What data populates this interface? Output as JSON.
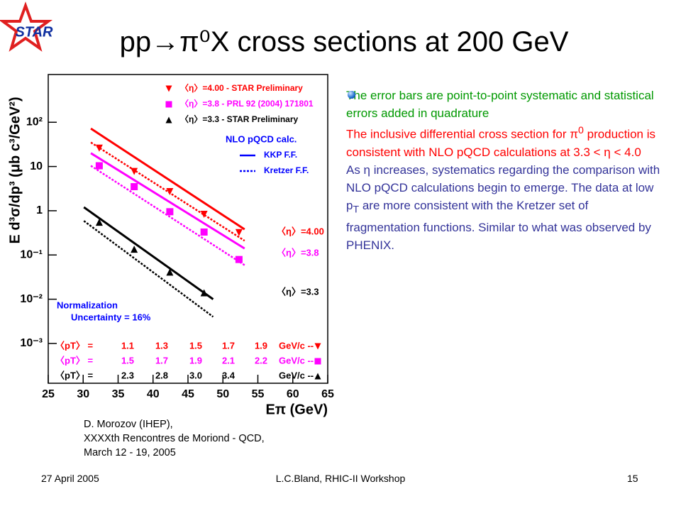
{
  "logo": "STAR",
  "title": "pp→π⁰X cross sections at 200 GeV",
  "bullets": [
    {
      "color": "#009900",
      "segments": [
        {
          "text": "The error bars are point-to-point systematic and statistical errors added in quadrature"
        }
      ]
    },
    {
      "color": "#ff0000",
      "segments": [
        {
          "text": "The  inclusive differential cross section for π"
        },
        {
          "sup": "0"
        },
        {
          "text": "  production is consistent with NLO pQCD calculations at 3.3 < η < 4.0"
        }
      ]
    },
    {
      "color": "#333399",
      "segments": [
        {
          "text": "As η increases, systematics regarding the comparison with NLO pQCD calculations begin to emerge. The data at low p"
        },
        {
          "sub": "T"
        },
        {
          "text": " are more consistent with the Kretzer set of fragmentation functions. Similar to what was observed by PHENIX."
        }
      ]
    }
  ],
  "citation": [
    "D. Morozov (IHEP),",
    "XXXXth Rencontres de Moriond - QCD,",
    "March 12 - 19, 2005"
  ],
  "footer": {
    "date": "27 April 2005",
    "center": "L.C.Bland, RHIC-II Workshop",
    "page": "15"
  },
  "chart_data": {
    "type": "scatter",
    "x_label": "Eπ (GeV)",
    "y_label": "E d³σ/dp³ (μb c³/GeV²)",
    "log_y": true,
    "xlim": [
      25,
      65
    ],
    "xticks": [
      25,
      30,
      35,
      40,
      45,
      50,
      55,
      60,
      65
    ],
    "ylim": [
      0.000126,
      1200
    ],
    "yticks": [
      {
        "value": 100,
        "label": "10²"
      },
      10,
      1,
      {
        "value": 0.1,
        "label": "10⁻¹"
      },
      {
        "value": 0.01,
        "label": "10⁻²"
      },
      {
        "value": 0.001,
        "label": "10⁻³"
      }
    ],
    "series": [
      {
        "name": "〈η〉=4.00 - STAR Preliminary",
        "color": "#ff0000",
        "marker": "triangle-down",
        "label": "〈η〉=4.00",
        "x": [
          32.3,
          37.3,
          42.4,
          47.3,
          52.3
        ],
        "values": [
          26,
          7.7,
          2.7,
          0.83,
          0.32
        ]
      },
      {
        "name": "〈η〉=3.8 - PRL 92 (2004) 171801",
        "color": "#ff00ff",
        "marker": "square",
        "label": "〈η〉=3.8",
        "x": [
          32.3,
          37.3,
          42.4,
          47.3,
          52.3
        ],
        "values": [
          10.4,
          3.5,
          0.95,
          0.33,
          0.079
        ]
      },
      {
        "name": "〈η〉=3.3 - STAR Preliminary",
        "color": "#000000",
        "marker": "triangle-up",
        "label": "〈η〉=3.3",
        "x": [
          32.3,
          37.3,
          42.4,
          47.3
        ],
        "values": [
          0.55,
          0.135,
          0.041,
          0.014
        ]
      }
    ],
    "curve_title": "NLO pQCD calc.",
    "curve_legend": [
      {
        "name": "KKP F.F.",
        "style": "solid"
      },
      {
        "name": "Kretzer F.F.",
        "style": "dashed"
      }
    ],
    "curves": [
      {
        "color": "#ff0000",
        "style": "solid",
        "x": [
          31.1,
          53.1
        ],
        "values": [
          72,
          0.38
        ]
      },
      {
        "color": "#ff0000",
        "style": "dashed",
        "x": [
          31.1,
          53.1
        ],
        "values": [
          35,
          0.21
        ]
      },
      {
        "color": "#ff00ff",
        "style": "solid",
        "x": [
          31.1,
          53.1
        ],
        "values": [
          20,
          0.14
        ]
      },
      {
        "color": "#ff00ff",
        "style": "dashed",
        "x": [
          31.1,
          53.1
        ],
        "values": [
          10.4,
          0.059
        ]
      },
      {
        "color": "#000000",
        "style": "solid",
        "x": [
          30.1,
          48.6
        ],
        "values": [
          1.2,
          0.01
        ]
      },
      {
        "color": "#000000",
        "style": "dashed",
        "x": [
          30.1,
          48.6
        ],
        "values": [
          0.59,
          0.004
        ]
      }
    ],
    "normalization": [
      "Normalization",
      "Uncertainty = 16%"
    ],
    "pt_rows": [
      {
        "label": "〈pT〉 =",
        "color": "#ff0000",
        "marker": "triangle-down",
        "values": [
          "1.1",
          "1.3",
          "1.5",
          "1.7",
          "1.9"
        ],
        "unit": "GeV/c --"
      },
      {
        "label": "〈pT〉 =",
        "color": "#ff00ff",
        "marker": "square",
        "values": [
          "1.5",
          "1.7",
          "1.9",
          "2.1",
          "2.2"
        ],
        "unit": "GeV/c --"
      },
      {
        "label": "〈pT〉 =",
        "color": "#000000",
        "marker": "triangle-up",
        "values": [
          "2.3",
          "2.8",
          "3.0",
          "3.4"
        ],
        "unit": "GeV/c --"
      }
    ]
  }
}
